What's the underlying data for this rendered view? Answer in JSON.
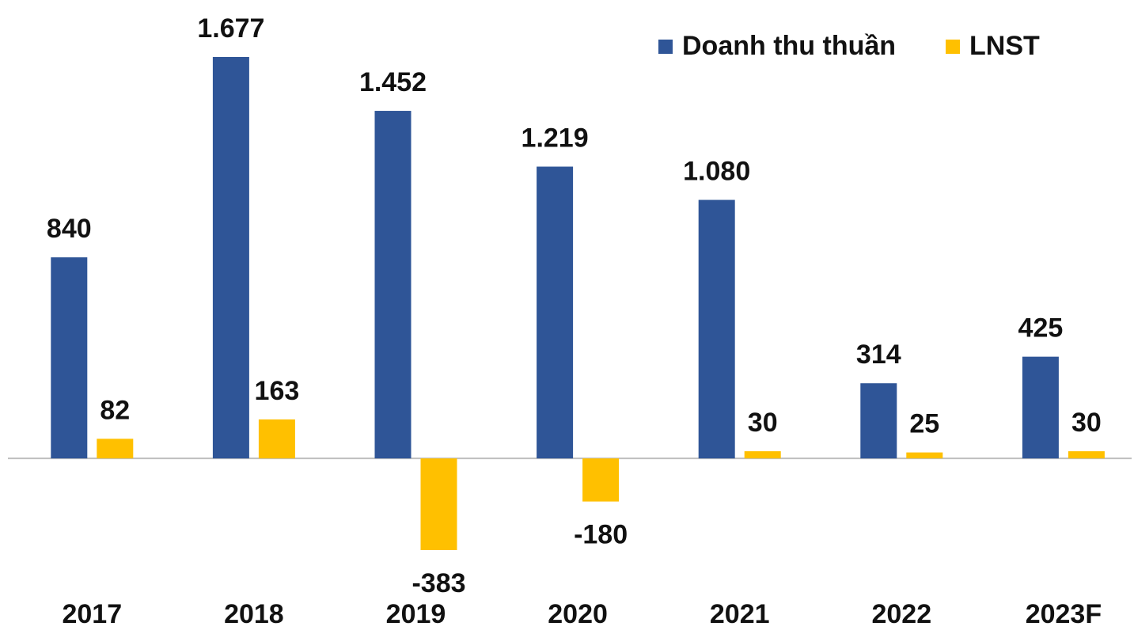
{
  "chart_data": {
    "type": "bar",
    "categories": [
      "2017",
      "2018",
      "2019",
      "2020",
      "2021",
      "2022",
      "2023F"
    ],
    "series": [
      {
        "name": "Doanh thu thuần",
        "color": "#2f5597",
        "values": [
          840,
          1677,
          1452,
          1219,
          1080,
          314,
          425
        ],
        "value_labels": [
          "840",
          "1.677",
          "1.452",
          "1.219",
          "1.080",
          "314",
          "425"
        ]
      },
      {
        "name": "LNST",
        "color": "#ffc000",
        "values": [
          82,
          163,
          -383,
          -180,
          30,
          25,
          30
        ]
      }
    ],
    "legend": "top-right"
  }
}
